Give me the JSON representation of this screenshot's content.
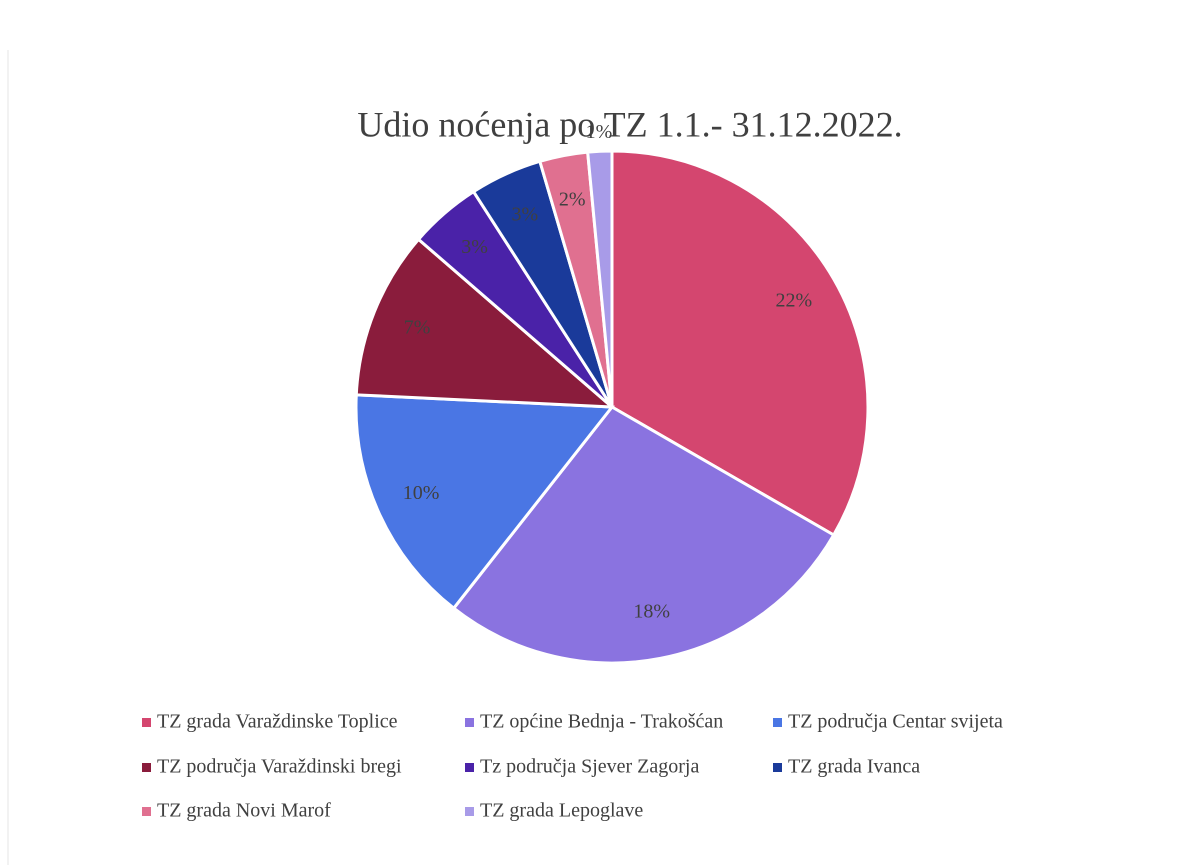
{
  "chart_data": {
    "type": "pie",
    "title": "Udio noćenja po TZ  1.1.- 31.12.2022.",
    "categories": [
      "TZ grada Varaždinske Toplice",
      "TZ općine Bednja - Trakošćan",
      "TZ područja Centar svijeta",
      "TZ područja Varaždinski bregi",
      "Tz područja Sjever Zagorja",
      "TZ grada Ivanca",
      "TZ grada Novi Marof",
      "TZ grada Lepoglave"
    ],
    "values": [
      22,
      18,
      10,
      7,
      3,
      3,
      2,
      1
    ],
    "value_labels": [
      "22%",
      "18%",
      "10%",
      "7%",
      "3%",
      "3%",
      "2%",
      "1%"
    ],
    "colors": [
      "#d4466f",
      "#8a73e0",
      "#4a76e4",
      "#8a1c3c",
      "#4a22a8",
      "#1a3a9a",
      "#e07090",
      "#a89be8"
    ],
    "legend": "bottom"
  }
}
